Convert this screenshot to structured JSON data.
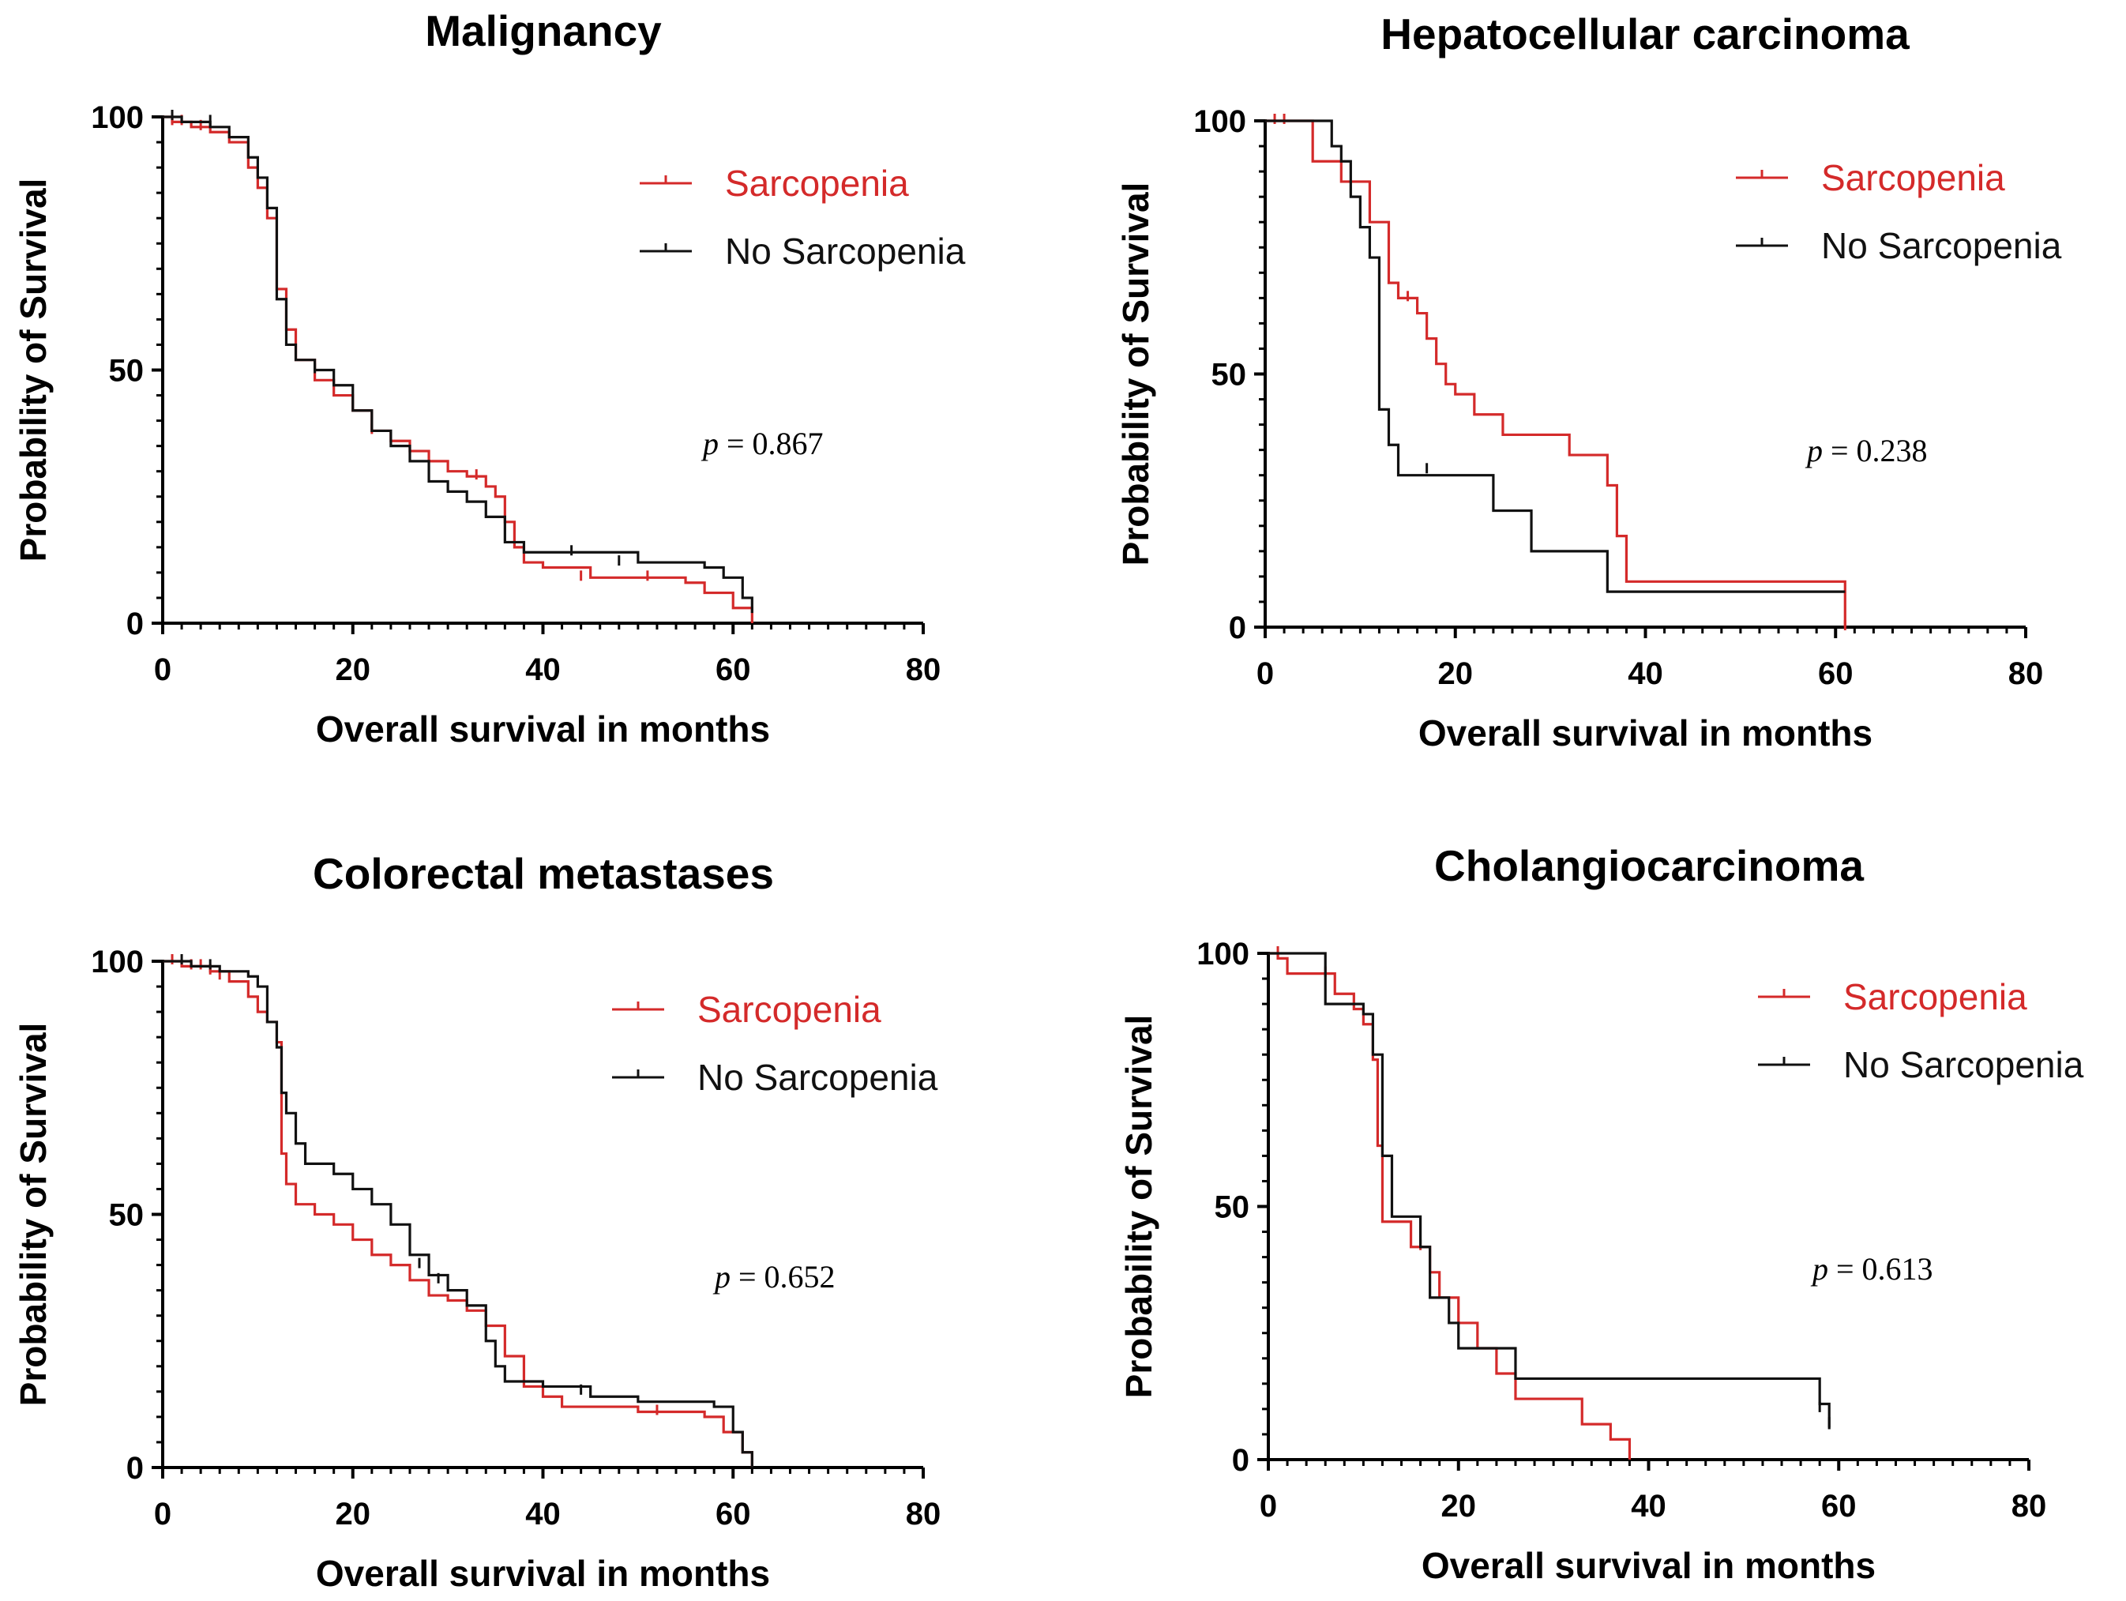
{
  "colors": {
    "sarcopenia": "#d42a2a",
    "no_sarcopenia": "#111111",
    "axis": "#000000"
  },
  "chart_data": [
    {
      "type": "line",
      "title": "Malignancy",
      "xlabel": "Overall survival in months",
      "ylabel": "Probability of Survival",
      "xlim": [
        0,
        80
      ],
      "ylim": [
        0,
        100
      ],
      "xticks": [
        "0",
        "20",
        "40",
        "60",
        "80"
      ],
      "yticks": [
        "0",
        "50",
        "100"
      ],
      "p_prefix": "p",
      "p_value": " = 0.867",
      "legend": [
        "Sarcopenia",
        "No Sarcopenia"
      ],
      "series": [
        {
          "name": "Sarcopenia",
          "color": "#d42a2a",
          "points": [
            [
              0,
              100
            ],
            [
              1,
              99
            ],
            [
              3,
              98
            ],
            [
              5,
              97
            ],
            [
              7,
              95
            ],
            [
              9,
              90
            ],
            [
              10,
              86
            ],
            [
              11,
              80
            ],
            [
              12,
              66
            ],
            [
              13,
              58
            ],
            [
              14,
              52
            ],
            [
              16,
              48
            ],
            [
              18,
              45
            ],
            [
              20,
              42
            ],
            [
              22,
              38
            ],
            [
              24,
              36
            ],
            [
              26,
              34
            ],
            [
              28,
              32
            ],
            [
              30,
              30
            ],
            [
              32,
              29
            ],
            [
              34,
              27
            ],
            [
              35,
              25
            ],
            [
              36,
              20
            ],
            [
              37,
              15
            ],
            [
              38,
              12
            ],
            [
              40,
              11
            ],
            [
              45,
              9
            ],
            [
              55,
              8
            ],
            [
              57,
              6
            ],
            [
              60,
              3
            ],
            [
              62,
              0
            ]
          ],
          "censors": [
            [
              1,
              99
            ],
            [
              2,
              99
            ],
            [
              4,
              98
            ],
            [
              22,
              38
            ],
            [
              26,
              34
            ],
            [
              33,
              29
            ],
            [
              44,
              9
            ],
            [
              51,
              9
            ]
          ]
        },
        {
          "name": "No Sarcopenia",
          "color": "#111111",
          "points": [
            [
              0,
              100
            ],
            [
              2,
              99
            ],
            [
              5,
              98
            ],
            [
              7,
              96
            ],
            [
              9,
              92
            ],
            [
              10,
              88
            ],
            [
              11,
              82
            ],
            [
              12,
              64
            ],
            [
              13,
              55
            ],
            [
              14,
              52
            ],
            [
              16,
              50
            ],
            [
              18,
              47
            ],
            [
              20,
              42
            ],
            [
              22,
              38
            ],
            [
              24,
              35
            ],
            [
              26,
              32
            ],
            [
              28,
              28
            ],
            [
              30,
              26
            ],
            [
              32,
              24
            ],
            [
              34,
              21
            ],
            [
              36,
              16
            ],
            [
              38,
              14
            ],
            [
              45,
              14
            ],
            [
              50,
              12
            ],
            [
              57,
              11
            ],
            [
              59,
              9
            ],
            [
              61,
              5
            ],
            [
              62,
              2
            ]
          ],
          "censors": [
            [
              1,
              100
            ],
            [
              5,
              99
            ],
            [
              16,
              50
            ],
            [
              43,
              14
            ],
            [
              48,
              12
            ]
          ]
        }
      ]
    },
    {
      "type": "line",
      "title": "Hepatocellular carcinoma",
      "xlabel": "Overall survival in months",
      "ylabel": "Probability of Survival",
      "xlim": [
        0,
        80
      ],
      "ylim": [
        0,
        100
      ],
      "xticks": [
        "0",
        "20",
        "40",
        "60",
        "80"
      ],
      "yticks": [
        "0",
        "50",
        "100"
      ],
      "p_prefix": "p",
      "p_value": " = 0.238",
      "legend": [
        "Sarcopenia",
        "No Sarcopenia"
      ],
      "series": [
        {
          "name": "Sarcopenia",
          "color": "#d42a2a",
          "points": [
            [
              0,
              100
            ],
            [
              3,
              100
            ],
            [
              5,
              92
            ],
            [
              8,
              88
            ],
            [
              10,
              88
            ],
            [
              11,
              80
            ],
            [
              13,
              68
            ],
            [
              14,
              65
            ],
            [
              16,
              62
            ],
            [
              17,
              57
            ],
            [
              18,
              52
            ],
            [
              19,
              48
            ],
            [
              20,
              46
            ],
            [
              22,
              42
            ],
            [
              25,
              38
            ],
            [
              30,
              38
            ],
            [
              32,
              34
            ],
            [
              35,
              34
            ],
            [
              36,
              28
            ],
            [
              37,
              18
            ],
            [
              38,
              9
            ],
            [
              58,
              9
            ],
            [
              61,
              0
            ]
          ],
          "censors": [
            [
              1,
              100
            ],
            [
              2,
              100
            ],
            [
              15,
              65
            ],
            [
              61,
              0
            ]
          ]
        },
        {
          "name": "No Sarcopenia",
          "color": "#111111",
          "points": [
            [
              0,
              100
            ],
            [
              6,
              100
            ],
            [
              7,
              95
            ],
            [
              8,
              92
            ],
            [
              9,
              85
            ],
            [
              10,
              79
            ],
            [
              11,
              73
            ],
            [
              12,
              43
            ],
            [
              13,
              36
            ],
            [
              14,
              30
            ],
            [
              24,
              30
            ],
            [
              24,
              23
            ],
            [
              28,
              23
            ],
            [
              28,
              15
            ],
            [
              35,
              15
            ],
            [
              36,
              7
            ],
            [
              58,
              7
            ],
            [
              61,
              7
            ]
          ],
          "censors": [
            [
              17,
              31
            ]
          ]
        }
      ]
    },
    {
      "type": "line",
      "title": "Colorectal metastases",
      "xlabel": "Overall survival in months",
      "ylabel": "Probability of Survival",
      "xlim": [
        0,
        80
      ],
      "ylim": [
        0,
        100
      ],
      "xticks": [
        "0",
        "20",
        "40",
        "60",
        "80"
      ],
      "yticks": [
        "0",
        "50",
        "100"
      ],
      "p_prefix": "p",
      "p_value": " = 0.652",
      "legend": [
        "Sarcopenia",
        "No Sarcopenia"
      ],
      "series": [
        {
          "name": "Sarcopenia",
          "color": "#d42a2a",
          "points": [
            [
              0,
              100
            ],
            [
              2,
              99
            ],
            [
              5,
              98
            ],
            [
              7,
              96
            ],
            [
              9,
              93
            ],
            [
              10,
              90
            ],
            [
              11,
              88
            ],
            [
              12,
              84
            ],
            [
              12.5,
              62
            ],
            [
              13,
              56
            ],
            [
              14,
              52
            ],
            [
              16,
              50
            ],
            [
              18,
              48
            ],
            [
              20,
              45
            ],
            [
              22,
              42
            ],
            [
              24,
              40
            ],
            [
              26,
              37
            ],
            [
              28,
              34
            ],
            [
              30,
              33
            ],
            [
              32,
              31
            ],
            [
              34,
              28
            ],
            [
              36,
              22
            ],
            [
              38,
              16
            ],
            [
              40,
              14
            ],
            [
              42,
              12
            ],
            [
              50,
              11
            ],
            [
              57,
              10
            ],
            [
              59,
              7
            ],
            [
              61,
              3
            ],
            [
              62,
              0
            ]
          ],
          "censors": [
            [
              1,
              100
            ],
            [
              3,
              99
            ],
            [
              4,
              99
            ],
            [
              5,
              98
            ],
            [
              6,
              97
            ],
            [
              52,
              11
            ]
          ]
        },
        {
          "name": "No Sarcopenia",
          "color": "#111111",
          "points": [
            [
              0,
              100
            ],
            [
              3,
              99
            ],
            [
              6,
              98
            ],
            [
              9,
              97
            ],
            [
              10,
              95
            ],
            [
              11,
              88
            ],
            [
              12,
              83
            ],
            [
              12.5,
              74
            ],
            [
              13,
              70
            ],
            [
              14,
              64
            ],
            [
              15,
              60
            ],
            [
              18,
              58
            ],
            [
              20,
              55
            ],
            [
              22,
              52
            ],
            [
              24,
              48
            ],
            [
              26,
              42
            ],
            [
              28,
              38
            ],
            [
              30,
              35
            ],
            [
              32,
              32
            ],
            [
              34,
              25
            ],
            [
              35,
              20
            ],
            [
              36,
              17
            ],
            [
              40,
              16
            ],
            [
              45,
              14
            ],
            [
              50,
              13
            ],
            [
              58,
              12
            ],
            [
              60,
              7
            ],
            [
              61,
              3
            ],
            [
              62,
              0
            ]
          ],
          "censors": [
            [
              2,
              100
            ],
            [
              5,
              99
            ],
            [
              27,
              40
            ],
            [
              29,
              37
            ],
            [
              44,
              15
            ]
          ]
        }
      ]
    },
    {
      "type": "line",
      "title": "Cholangiocarcinoma",
      "xlabel": "Overall survival in months",
      "ylabel": "Probability of Survival",
      "xlim": [
        0,
        80
      ],
      "ylim": [
        0,
        100
      ],
      "xticks": [
        "0",
        "20",
        "40",
        "60",
        "80"
      ],
      "yticks": [
        "0",
        "50",
        "100"
      ],
      "p_prefix": "p",
      "p_value": " = 0.613",
      "legend": [
        "Sarcopenia",
        "No Sarcopenia"
      ],
      "series": [
        {
          "name": "Sarcopenia",
          "color": "#d42a2a",
          "points": [
            [
              0,
              100
            ],
            [
              1,
              99
            ],
            [
              2,
              96
            ],
            [
              5,
              96
            ],
            [
              7,
              92
            ],
            [
              9,
              89
            ],
            [
              10,
              86
            ],
            [
              11,
              79
            ],
            [
              11.5,
              62
            ],
            [
              12,
              47
            ],
            [
              14,
              47
            ],
            [
              15,
              42
            ],
            [
              17,
              37
            ],
            [
              18,
              32
            ],
            [
              20,
              27
            ],
            [
              22,
              22
            ],
            [
              24,
              17
            ],
            [
              26,
              12
            ],
            [
              32,
              12
            ],
            [
              33,
              7
            ],
            [
              36,
              4
            ],
            [
              38,
              0
            ]
          ],
          "censors": [
            [
              1,
              100
            ],
            [
              6,
              96
            ],
            [
              16,
              42
            ]
          ]
        },
        {
          "name": "No Sarcopenia",
          "color": "#111111",
          "points": [
            [
              0,
              100
            ],
            [
              5,
              100
            ],
            [
              6,
              90
            ],
            [
              8,
              90
            ],
            [
              10,
              88
            ],
            [
              11,
              80
            ],
            [
              12,
              60
            ],
            [
              13,
              48
            ],
            [
              14,
              48
            ],
            [
              16,
              42
            ],
            [
              17,
              32
            ],
            [
              19,
              27
            ],
            [
              20,
              22
            ],
            [
              24,
              22
            ],
            [
              26,
              16
            ],
            [
              57,
              16
            ],
            [
              58,
              11
            ],
            [
              59,
              6
            ]
          ],
          "censors": [
            [
              58,
              10
            ],
            [
              59,
              7
            ]
          ]
        }
      ]
    }
  ]
}
